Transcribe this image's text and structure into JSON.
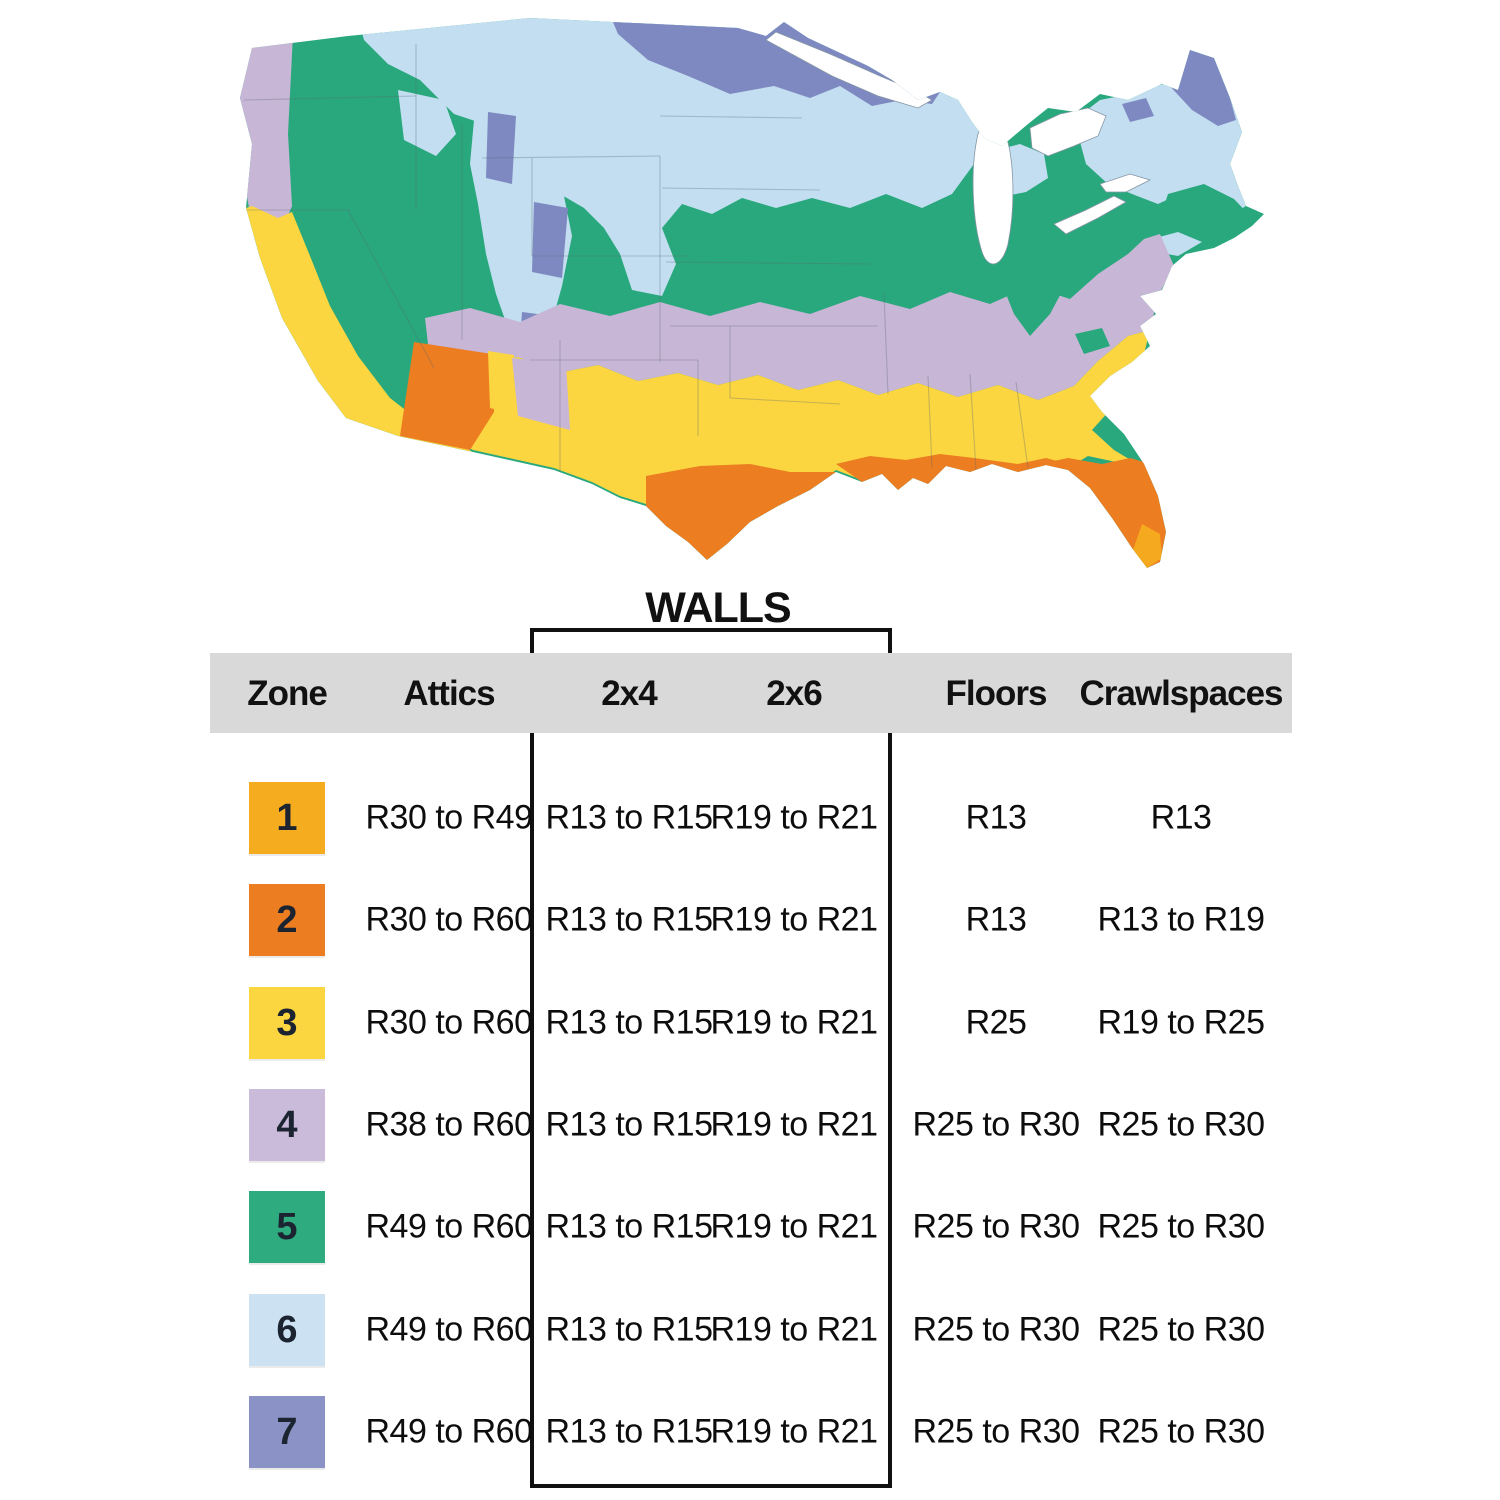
{
  "map": {
    "name": "U.S. insulation climate zone map",
    "zone_colors": {
      "zone1": "#F5A91E",
      "zone2": "#EC7D21",
      "zone3": "#FBD640",
      "zone4": "#C8B6D6",
      "zone5": "#29A87D",
      "zone6": "#C2DEF0",
      "zone7": "#7E89C1"
    },
    "water_color": "#FFFFFF",
    "state_border_color": "#5B6670"
  },
  "walls_label": "WALLS",
  "table": {
    "header_background": "#D9D9D9",
    "text_color": "#111111",
    "headers": [
      "Zone",
      "Attics",
      "2x4",
      "2x6",
      "Floors",
      "Crawlspaces"
    ],
    "rows": [
      {
        "zone": "1",
        "color": "#F5AC1E",
        "attics": "R30 to R49",
        "wall_2x4": "R13 to R15",
        "wall_2x6": "R19 to R21",
        "floors": "R13",
        "crawlspaces": "R13"
      },
      {
        "zone": "2",
        "color": "#EC7D21",
        "attics": "R30 to R60",
        "wall_2x4": "R13 to R15",
        "wall_2x6": "R19 to R21",
        "floors": "R13",
        "crawlspaces": "R13 to R19"
      },
      {
        "zone": "3",
        "color": "#FBD640",
        "attics": "R30 to R60",
        "wall_2x4": "R13 to R15",
        "wall_2x6": "R19 to R21",
        "floors": "R25",
        "crawlspaces": "R19 to R25"
      },
      {
        "zone": "4",
        "color": "#CBBBDA",
        "attics": "R38 to R60",
        "wall_2x4": "R13 to R15",
        "wall_2x6": "R19 to R21",
        "floors": "R25 to R30",
        "crawlspaces": "R25 to R30"
      },
      {
        "zone": "5",
        "color": "#2EAC80",
        "attics": "R49 to R60",
        "wall_2x4": "R13 to R15",
        "wall_2x6": "R19 to R21",
        "floors": "R25 to R30",
        "crawlspaces": "R25 to R30"
      },
      {
        "zone": "6",
        "color": "#CCE2F3",
        "attics": "R49 to R60",
        "wall_2x4": "R13 to R15",
        "wall_2x6": "R19 to R21",
        "floors": "R25 to R30",
        "crawlspaces": "R25 to R30"
      },
      {
        "zone": "7",
        "color": "#8A92C6",
        "attics": "R49 to R60",
        "wall_2x4": "R13 to R15",
        "wall_2x6": "R19 to R21",
        "floors": "R25 to R30",
        "crawlspaces": "R25 to R30"
      }
    ]
  },
  "chart_data": {
    "type": "table",
    "title": "Recommended insulation R-values by climate zone",
    "columns": [
      "Zone",
      "Attics",
      "Walls 2x4",
      "Walls 2x6",
      "Floors",
      "Crawlspaces"
    ],
    "rows": [
      [
        "1",
        "R30 to R49",
        "R13 to R15",
        "R19 to R21",
        "R13",
        "R13"
      ],
      [
        "2",
        "R30 to R60",
        "R13 to R15",
        "R19 to R21",
        "R13",
        "R13 to R19"
      ],
      [
        "3",
        "R30 to R60",
        "R13 to R15",
        "R19 to R21",
        "R25",
        "R19 to R25"
      ],
      [
        "4",
        "R38 to R60",
        "R13 to R15",
        "R19 to R21",
        "R25 to R30",
        "R25 to R30"
      ],
      [
        "5",
        "R49 to R60",
        "R13 to R15",
        "R19 to R21",
        "R25 to R30",
        "R25 to R30"
      ],
      [
        "6",
        "R49 to R60",
        "R13 to R15",
        "R19 to R21",
        "R25 to R30",
        "R25 to R30"
      ],
      [
        "7",
        "R49 to R60",
        "R13 to R15",
        "R19 to R21",
        "R25 to R30",
        "R25 to R30"
      ]
    ]
  }
}
